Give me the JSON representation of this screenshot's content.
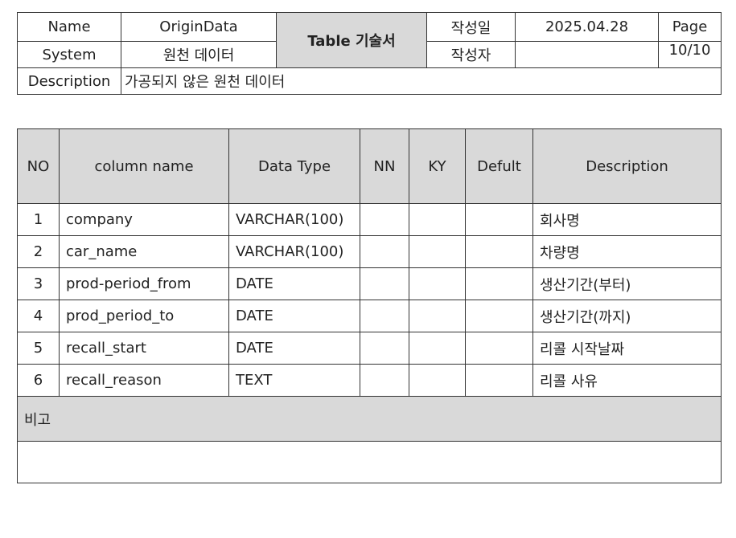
{
  "header": {
    "name_label": "Name",
    "name_value": "OriginData",
    "doc_title": "Table 기술서",
    "date_label": "작성일",
    "date_value": "2025.04.28",
    "page_label": "Page",
    "page_value": "10/10",
    "system_label": "System",
    "system_value": "원천 데이터",
    "author_label": "작성자",
    "author_value": "",
    "description_label": "Description",
    "description_value": "가공되지 않은 원천 데이터"
  },
  "columns_table": {
    "headers": [
      "NO",
      "column name",
      "Data Type",
      "NN",
      "KY",
      "Defult",
      "Description"
    ],
    "rows": [
      {
        "no": "1",
        "name": "company",
        "type": "VARCHAR(100)",
        "nn": "",
        "ky": "",
        "default": "",
        "desc": "회사명"
      },
      {
        "no": "2",
        "name": "car_name",
        "type": "VARCHAR(100)",
        "nn": "",
        "ky": "",
        "default": "",
        "desc": "차량명"
      },
      {
        "no": "3",
        "name": "prod-period_from",
        "type": "DATE",
        "nn": "",
        "ky": "",
        "default": "",
        "desc": "생산기간(부터)"
      },
      {
        "no": "4",
        "name": "prod_period_to",
        "type": "DATE",
        "nn": "",
        "ky": "",
        "default": "",
        "desc": "생산기간(까지)"
      },
      {
        "no": "5",
        "name": "recall_start",
        "type": "DATE",
        "nn": "",
        "ky": "",
        "default": "",
        "desc": "리콜 시작날짜"
      },
      {
        "no": "6",
        "name": "recall_reason",
        "type": "TEXT",
        "nn": "",
        "ky": "",
        "default": "",
        "desc": "리콜 사유"
      }
    ],
    "note_label": "비고",
    "note_value": ""
  },
  "colors": {
    "header_gray": "#d9d9d9",
    "border": "#333333"
  }
}
